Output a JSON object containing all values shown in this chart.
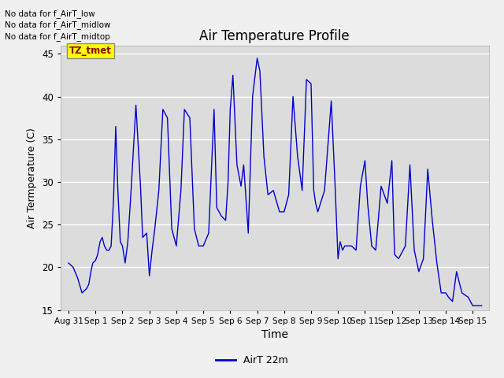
{
  "title": "Air Temperature Profile",
  "xlabel": "Time",
  "ylabel": "Air Termperature (C)",
  "ylim": [
    15,
    46
  ],
  "yticks": [
    15,
    20,
    25,
    30,
    35,
    40,
    45
  ],
  "bg_color": "#dcdcdc",
  "fig_color": "#f0f0f0",
  "line_color": "#0000cc",
  "legend_label": "AirT 22m",
  "text_annotations": [
    "No data for f_AirT_low",
    "No data for f_AirT_midlow",
    "No data for f_AirT_midtop"
  ],
  "tz_label": "TZ_tmet",
  "x_tick_labels": [
    "Aug 31",
    "Sep 1",
    "Sep 2",
    "Sep 3",
    "Sep 4",
    "Sep 5",
    "Sep 6",
    "Sep 7",
    "Sep 8",
    "Sep 9",
    "Sep 10",
    "Sep 11",
    "Sep 12",
    "Sep 13",
    "Sep 14",
    "Sep 15"
  ],
  "data_x": [
    0,
    0.17,
    0.33,
    0.5,
    0.67,
    0.75,
    0.83,
    0.9,
    1.0,
    1.08,
    1.17,
    1.25,
    1.33,
    1.42,
    1.5,
    1.58,
    1.67,
    1.75,
    1.83,
    1.92,
    2.0,
    2.1,
    2.2,
    2.33,
    2.5,
    2.67,
    2.75,
    2.9,
    3.0,
    3.1,
    3.2,
    3.35,
    3.5,
    3.67,
    3.83,
    4.0,
    4.17,
    4.3,
    4.5,
    4.67,
    4.83,
    5.0,
    5.2,
    5.4,
    5.5,
    5.67,
    5.83,
    5.92,
    6.0,
    6.1,
    6.25,
    6.4,
    6.5,
    6.67,
    6.83,
    7.0,
    7.1,
    7.25,
    7.4,
    7.6,
    7.83,
    8.0,
    8.17,
    8.33,
    8.5,
    8.67,
    8.83,
    9.0,
    9.1,
    9.17,
    9.25,
    9.5,
    9.75,
    9.9,
    10.0,
    10.08,
    10.17,
    10.25,
    10.5,
    10.67,
    10.83,
    11.0,
    11.1,
    11.25,
    11.4,
    11.6,
    11.83,
    12.0,
    12.1,
    12.25,
    12.5,
    12.67,
    12.83,
    13.0,
    13.17,
    13.33,
    13.5,
    13.67,
    13.83,
    14.0,
    14.1,
    14.25,
    14.4,
    14.6,
    14.83,
    15.0,
    15.17,
    15.25,
    15.33
  ],
  "data_y": [
    20.5,
    20.0,
    18.8,
    17.0,
    17.5,
    18.0,
    19.5,
    20.5,
    20.8,
    21.5,
    23.0,
    23.5,
    22.5,
    22.0,
    22.0,
    22.5,
    28.0,
    36.5,
    29.0,
    23.0,
    22.5,
    20.5,
    23.0,
    29.5,
    39.0,
    29.5,
    23.5,
    24.0,
    19.0,
    22.0,
    24.5,
    29.0,
    38.5,
    37.5,
    24.5,
    22.5,
    29.0,
    38.5,
    37.5,
    24.5,
    22.5,
    22.5,
    24.0,
    38.5,
    27.0,
    26.0,
    25.5,
    30.0,
    38.5,
    42.5,
    32.0,
    29.5,
    32.0,
    24.0,
    40.0,
    44.5,
    43.0,
    33.0,
    28.5,
    29.0,
    26.5,
    26.5,
    28.5,
    40.0,
    33.0,
    29.0,
    42.0,
    41.5,
    29.0,
    27.5,
    26.5,
    29.0,
    39.5,
    29.0,
    21.0,
    23.0,
    22.0,
    22.5,
    22.5,
    22.0,
    29.5,
    32.5,
    27.5,
    22.5,
    22.0,
    29.5,
    27.5,
    32.5,
    21.5,
    21.0,
    22.5,
    32.0,
    22.0,
    19.5,
    21.0,
    31.5,
    25.5,
    20.5,
    17.0,
    17.0,
    16.5,
    16.0,
    19.5,
    17.0,
    16.5,
    15.5,
    15.5,
    15.5,
    15.5
  ]
}
